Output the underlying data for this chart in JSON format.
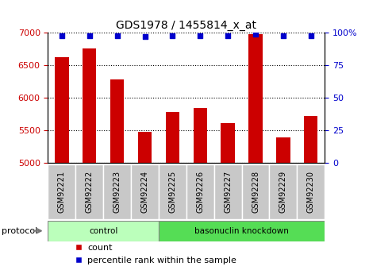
{
  "title": "GDS1978 / 1455814_x_at",
  "samples": [
    "GSM92221",
    "GSM92222",
    "GSM92223",
    "GSM92224",
    "GSM92225",
    "GSM92226",
    "GSM92227",
    "GSM92228",
    "GSM92229",
    "GSM92230"
  ],
  "counts": [
    6630,
    6760,
    6290,
    5480,
    5780,
    5840,
    5610,
    6980,
    5390,
    5720
  ],
  "percentile_values": [
    98,
    98,
    98,
    97,
    98,
    98,
    98,
    99,
    98,
    98
  ],
  "groups": [
    {
      "label": "control",
      "start": 0,
      "end": 4
    },
    {
      "label": "basonuclin knockdown",
      "start": 4,
      "end": 10
    }
  ],
  "group_colors": [
    "#BBFFBB",
    "#55DD55"
  ],
  "ylim_left": [
    5000,
    7000
  ],
  "ylim_right": [
    0,
    100
  ],
  "yticks_left": [
    5000,
    5500,
    6000,
    6500,
    7000
  ],
  "yticks_right": [
    0,
    25,
    50,
    75,
    100
  ],
  "ytick_labels_right": [
    "0",
    "25",
    "50",
    "75",
    "100%"
  ],
  "bar_color": "#CC0000",
  "dot_color": "#0000CC",
  "bar_width": 0.5,
  "grid_color": "#000000",
  "bg_color": "#FFFFFF",
  "tick_label_color_left": "#CC0000",
  "tick_label_color_right": "#0000CC",
  "protocol_label": "protocol",
  "legend_count_label": "count",
  "legend_percentile_label": "percentile rank within the sample",
  "tick_box_color": "#C8C8C8",
  "tick_box_edge_color": "#FFFFFF"
}
